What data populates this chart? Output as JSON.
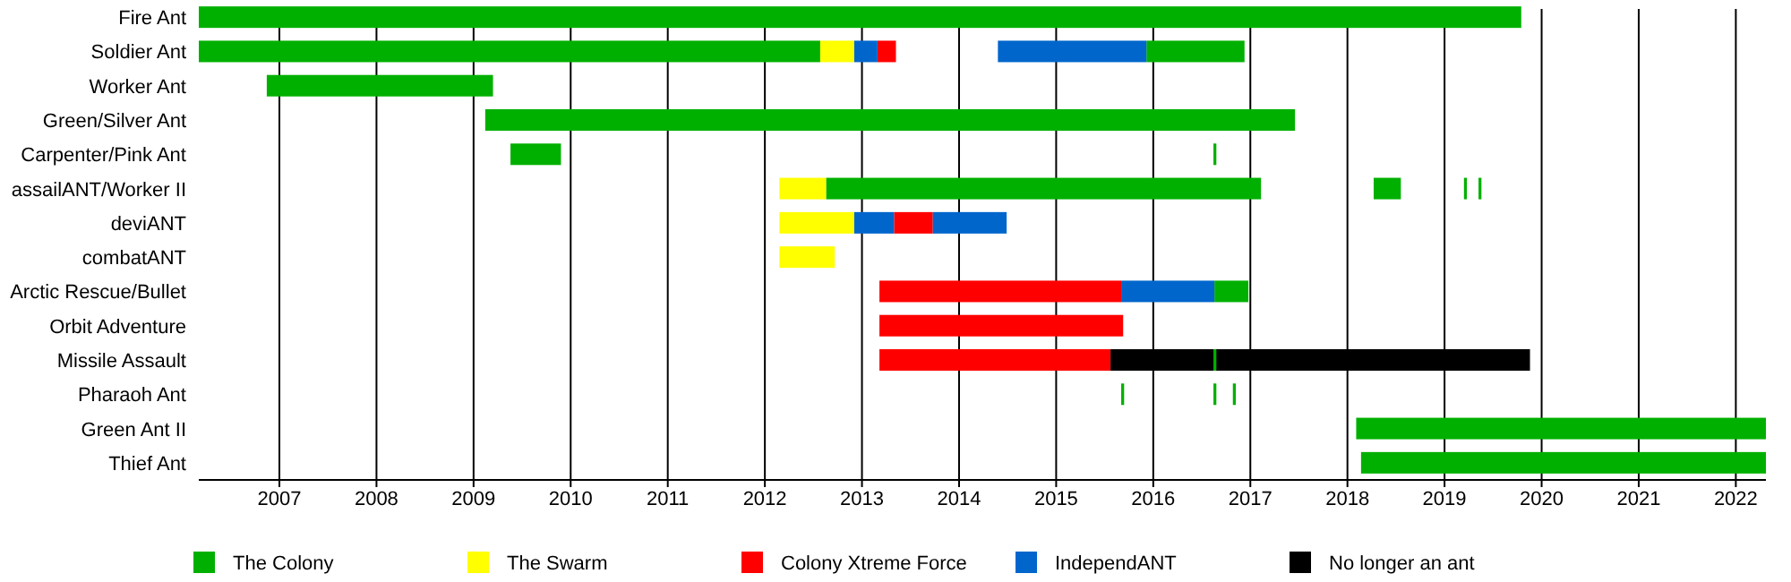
{
  "chart_data": {
    "type": "bar",
    "orientation": "horizontal",
    "categories": [
      "Fire Ant",
      "Soldier Ant",
      "Worker Ant",
      "Green/Silver Ant",
      "Carpenter/Pink Ant",
      "assailANT/Worker II",
      "deviANT",
      "combatANT",
      "Arctic Rescue/Bullet",
      "Orbit Adventure",
      "Missile Assault",
      "Pharaoh Ant",
      "Green Ant II",
      "Thief Ant"
    ],
    "series": [
      {
        "name": "The Colony",
        "color": "#00b000",
        "base": [
          2006.17,
          2006.17,
          2006.87,
          2009.12,
          2009.38,
          2012.63,
          null,
          null,
          2016.63,
          null,
          null,
          2015.67,
          2018.09,
          2018.14
        ],
        "values": [
          13.62,
          6.4,
          2.33,
          8.34,
          0.52,
          4.48,
          null,
          null,
          0.35,
          null,
          null,
          0.03,
          4.22,
          4.17
        ]
      },
      {
        "name": "The Swarm",
        "color": "#ffff00",
        "base": [
          null,
          2012.57,
          null,
          null,
          null,
          2012.15,
          2012.15,
          2012.15,
          null,
          null,
          null,
          null,
          null,
          null
        ],
        "values": [
          null,
          0.35,
          null,
          null,
          null,
          0.48,
          0.77,
          0.57,
          null,
          null,
          null,
          null,
          null,
          null
        ]
      },
      {
        "name": "Colony Xtreme Force",
        "color": "#ff0000",
        "base": [
          null,
          2013.16,
          null,
          null,
          null,
          null,
          2013.33,
          null,
          2013.18,
          2013.18,
          2013.18,
          null,
          null,
          null
        ],
        "values": [
          null,
          0.19,
          null,
          null,
          null,
          null,
          0.4,
          null,
          2.49,
          2.51,
          2.38,
          null,
          null,
          null
        ]
      },
      {
        "name": "IndependANT",
        "color": "#0066cc",
        "base": [
          null,
          2012.92,
          null,
          null,
          null,
          null,
          2012.92,
          null,
          2015.67,
          null,
          null,
          null,
          null,
          null
        ],
        "values": [
          null,
          0.24,
          null,
          null,
          null,
          null,
          0.41,
          null,
          0.96,
          null,
          null,
          null,
          null,
          null
        ]
      },
      {
        "name": "No longer an ant",
        "color": "#000000",
        "base": [
          null,
          null,
          null,
          null,
          null,
          null,
          null,
          null,
          null,
          null,
          2015.56,
          null,
          null,
          null
        ],
        "values": [
          null,
          null,
          null,
          null,
          null,
          null,
          null,
          null,
          null,
          null,
          4.32,
          null,
          null,
          null
        ]
      },
      {
        "color": "#00b000",
        "base": [
          null,
          2015.93,
          null,
          null,
          2016.62,
          2018.27,
          null,
          null,
          null,
          null,
          2016.62,
          2016.62,
          null,
          null
        ],
        "values": [
          null,
          1.01,
          null,
          null,
          0.03,
          0.28,
          null,
          null,
          null,
          null,
          0.03,
          0.03,
          null,
          null
        ]
      },
      {
        "color": "#00b000",
        "base": [
          null,
          null,
          null,
          null,
          null,
          2019.2,
          null,
          null,
          null,
          null,
          null,
          2016.82,
          null,
          null
        ],
        "values": [
          null,
          null,
          null,
          null,
          null,
          0.03,
          null,
          null,
          null,
          null,
          null,
          0.03,
          null,
          null
        ]
      },
      {
        "color": "#00b000",
        "base": [
          null,
          null,
          null,
          null,
          null,
          2019.35,
          null,
          null,
          null,
          null,
          null,
          null,
          null,
          null
        ],
        "values": [
          null,
          null,
          null,
          null,
          null,
          0.03,
          null,
          null,
          null,
          null,
          null,
          null,
          null,
          null
        ]
      },
      {
        "color": "#0066cc",
        "base": [
          null,
          2014.4,
          null,
          null,
          null,
          null,
          2013.73,
          null,
          null,
          null,
          null,
          null,
          null,
          null
        ],
        "values": [
          null,
          1.53,
          null,
          null,
          null,
          null,
          0.76,
          null,
          null,
          null,
          null,
          null,
          null,
          null
        ]
      }
    ],
    "xlim": [
      2006.17,
      2022.31
    ],
    "xticks": [
      2007,
      2008,
      2009,
      2010,
      2011,
      2012,
      2013,
      2014,
      2015,
      2016,
      2017,
      2018,
      2019,
      2020,
      2021,
      2022
    ],
    "grid": "x",
    "legend": "bottom"
  }
}
